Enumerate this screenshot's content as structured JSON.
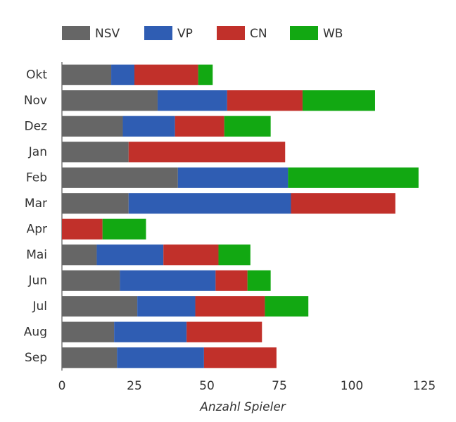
{
  "chart_data": {
    "type": "stacked-barh",
    "x_label": "Anzahl Spieler",
    "categories": [
      "Okt",
      "Nov",
      "Dez",
      "Jan",
      "Feb",
      "Mar",
      "Apr",
      "Mai",
      "Jun",
      "Jul",
      "Aug",
      "Sep"
    ],
    "series": [
      {
        "name": "NSV",
        "color": "#666666",
        "values": [
          17,
          33,
          21,
          23,
          40,
          23,
          0,
          12,
          20,
          26,
          18,
          19
        ]
      },
      {
        "name": "VP",
        "color": "#2f5db3",
        "values": [
          8,
          24,
          18,
          0,
          38,
          56,
          0,
          23,
          33,
          20,
          25,
          30
        ]
      },
      {
        "name": "CN",
        "color": "#c1302a",
        "values": [
          22,
          26,
          17,
          54,
          0,
          36,
          14,
          19,
          11,
          24,
          26,
          25
        ]
      },
      {
        "name": "WB",
        "color": "#12a812",
        "values": [
          5,
          25,
          16,
          0,
          45,
          0,
          15,
          11,
          8,
          15,
          0,
          0
        ]
      }
    ],
    "xlim": [
      0,
      125
    ],
    "xticks": [
      0,
      25,
      50,
      75,
      100,
      125
    ],
    "grid": false,
    "legend": "top"
  }
}
